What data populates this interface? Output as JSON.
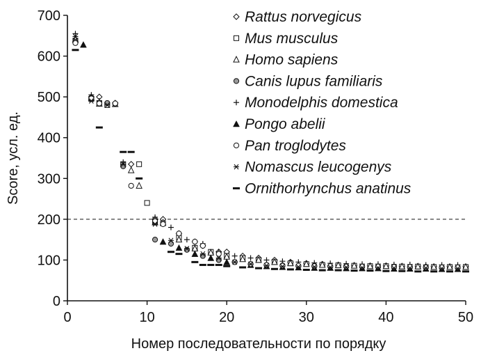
{
  "chart_data": {
    "type": "scatter",
    "xlabel": "Номер последовательности по порядку",
    "ylabel": "Score, усл. ед.",
    "xlim": [
      0,
      50
    ],
    "ylim": [
      0,
      700
    ],
    "x_ticks": [
      "0",
      "10",
      "20",
      "30",
      "40",
      "50"
    ],
    "y_ticks": [
      "0",
      "100",
      "200",
      "300",
      "400",
      "500",
      "600",
      "700"
    ],
    "grid": false,
    "legend_position": "top-right",
    "threshold_line": {
      "y": 200,
      "style": "dashed"
    },
    "series": [
      {
        "name": "Rattus norvegicus",
        "marker": "diamond-open",
        "points": [
          [
            1,
            635
          ],
          [
            3,
            500
          ],
          [
            4,
            500
          ],
          [
            6,
            485
          ],
          [
            8,
            335
          ],
          [
            11,
            200
          ],
          [
            12,
            200
          ],
          [
            14,
            165
          ],
          [
            16,
            145
          ],
          [
            17,
            135
          ],
          [
            19,
            120
          ],
          [
            20,
            120
          ],
          [
            22,
            110
          ],
          [
            24,
            105
          ],
          [
            26,
            100
          ],
          [
            28,
            95
          ],
          [
            30,
            92
          ],
          [
            32,
            90
          ],
          [
            34,
            88
          ],
          [
            36,
            87
          ],
          [
            38,
            86
          ],
          [
            40,
            86
          ],
          [
            42,
            85
          ],
          [
            44,
            85
          ],
          [
            46,
            84
          ],
          [
            48,
            84
          ],
          [
            50,
            84
          ]
        ]
      },
      {
        "name": "Mus musculus",
        "marker": "square-open",
        "points": [
          [
            1,
            638
          ],
          [
            3,
            495
          ],
          [
            4,
            485
          ],
          [
            5,
            480
          ],
          [
            7,
            335
          ],
          [
            9,
            335
          ],
          [
            10,
            240
          ],
          [
            11,
            195
          ],
          [
            12,
            190
          ],
          [
            14,
            155
          ],
          [
            16,
            130
          ],
          [
            18,
            120
          ],
          [
            20,
            110
          ],
          [
            22,
            105
          ],
          [
            24,
            100
          ],
          [
            26,
            95
          ],
          [
            28,
            92
          ],
          [
            30,
            90
          ],
          [
            32,
            88
          ],
          [
            34,
            87
          ],
          [
            36,
            86
          ],
          [
            38,
            85
          ],
          [
            40,
            85
          ],
          [
            42,
            84
          ],
          [
            44,
            84
          ],
          [
            46,
            83
          ],
          [
            48,
            83
          ],
          [
            50,
            83
          ]
        ]
      },
      {
        "name": "Homo sapiens",
        "marker": "triangle-open",
        "points": [
          [
            1,
            640
          ],
          [
            3,
            498
          ],
          [
            4,
            483
          ],
          [
            6,
            482
          ],
          [
            8,
            320
          ],
          [
            9,
            282
          ],
          [
            11,
            192
          ],
          [
            12,
            192
          ],
          [
            14,
            150
          ],
          [
            16,
            128
          ],
          [
            18,
            118
          ],
          [
            20,
            108
          ],
          [
            22,
            102
          ],
          [
            24,
            100
          ],
          [
            26,
            95
          ],
          [
            28,
            92
          ],
          [
            30,
            90
          ],
          [
            32,
            88
          ],
          [
            34,
            87
          ],
          [
            36,
            86
          ],
          [
            38,
            85
          ],
          [
            40,
            85
          ],
          [
            42,
            84
          ],
          [
            44,
            84
          ],
          [
            46,
            83
          ],
          [
            48,
            83
          ],
          [
            50,
            83
          ]
        ]
      },
      {
        "name": "Canis lupus familiaris",
        "marker": "circle-filled-gray",
        "points": [
          [
            1,
            635
          ],
          [
            3,
            495
          ],
          [
            5,
            485
          ],
          [
            6,
            483
          ],
          [
            7,
            330
          ],
          [
            11,
            150
          ],
          [
            13,
            140
          ],
          [
            15,
            125
          ],
          [
            17,
            110
          ],
          [
            19,
            100
          ],
          [
            21,
            95
          ],
          [
            23,
            90
          ],
          [
            25,
            88
          ],
          [
            27,
            87
          ],
          [
            29,
            86
          ],
          [
            31,
            86
          ],
          [
            33,
            85
          ],
          [
            35,
            85
          ],
          [
            37,
            84
          ],
          [
            39,
            84
          ],
          [
            41,
            84
          ],
          [
            43,
            83
          ],
          [
            45,
            83
          ],
          [
            47,
            82
          ],
          [
            49,
            82
          ]
        ]
      },
      {
        "name": "Monodelphis domestica",
        "marker": "plus",
        "points": [
          [
            1,
            655
          ],
          [
            3,
            505
          ],
          [
            4,
            490
          ],
          [
            7,
            340
          ],
          [
            11,
            205
          ],
          [
            13,
            180
          ],
          [
            15,
            150
          ],
          [
            17,
            140
          ],
          [
            19,
            120
          ],
          [
            21,
            110
          ],
          [
            23,
            105
          ],
          [
            25,
            100
          ],
          [
            27,
            97
          ],
          [
            29,
            95
          ],
          [
            31,
            93
          ],
          [
            33,
            92
          ],
          [
            35,
            91
          ],
          [
            37,
            90
          ],
          [
            39,
            90
          ],
          [
            41,
            89
          ],
          [
            43,
            89
          ],
          [
            45,
            88
          ],
          [
            47,
            88
          ],
          [
            49,
            88
          ]
        ]
      },
      {
        "name": "Pongo abelii",
        "marker": "triangle-filled",
        "points": [
          [
            2,
            628
          ],
          [
            12,
            145
          ],
          [
            14,
            130
          ],
          [
            16,
            115
          ],
          [
            18,
            105
          ],
          [
            20,
            95
          ],
          [
            23,
            88
          ],
          [
            25,
            85
          ],
          [
            27,
            83
          ],
          [
            29,
            82
          ],
          [
            31,
            81
          ],
          [
            33,
            81
          ],
          [
            35,
            80
          ],
          [
            37,
            80
          ],
          [
            39,
            80
          ],
          [
            41,
            79
          ],
          [
            43,
            79
          ],
          [
            45,
            79
          ],
          [
            47,
            78
          ],
          [
            49,
            78
          ]
        ]
      },
      {
        "name": "Pan troglodytes",
        "marker": "circle-open",
        "points": [
          [
            1,
            632
          ],
          [
            3,
            496
          ],
          [
            4,
            484
          ],
          [
            6,
            484
          ],
          [
            8,
            282
          ],
          [
            11,
            195
          ],
          [
            12,
            188
          ],
          [
            14,
            165
          ],
          [
            16,
            145
          ],
          [
            17,
            135
          ],
          [
            19,
            115
          ],
          [
            21,
            95
          ],
          [
            23,
            90
          ],
          [
            25,
            88
          ],
          [
            27,
            86
          ],
          [
            29,
            86
          ],
          [
            31,
            85
          ],
          [
            33,
            85
          ],
          [
            35,
            84
          ],
          [
            37,
            84
          ],
          [
            39,
            84
          ],
          [
            41,
            83
          ],
          [
            43,
            83
          ],
          [
            45,
            82
          ],
          [
            47,
            82
          ],
          [
            49,
            82
          ]
        ]
      },
      {
        "name": "Nomascus leucogenys",
        "marker": "asterisk",
        "points": [
          [
            1,
            648
          ],
          [
            3,
            490
          ],
          [
            5,
            480
          ],
          [
            7,
            335
          ],
          [
            11,
            188
          ],
          [
            13,
            148
          ],
          [
            15,
            128
          ],
          [
            17,
            115
          ],
          [
            19,
            105
          ],
          [
            21,
            95
          ],
          [
            23,
            90
          ],
          [
            25,
            86
          ],
          [
            27,
            84
          ],
          [
            29,
            83
          ],
          [
            31,
            83
          ],
          [
            33,
            82
          ],
          [
            35,
            82
          ],
          [
            37,
            81
          ],
          [
            39,
            81
          ],
          [
            41,
            80
          ],
          [
            43,
            80
          ],
          [
            45,
            80
          ],
          [
            47,
            79
          ],
          [
            49,
            79
          ]
        ]
      },
      {
        "name": "Ornithorhynchus anatinus",
        "marker": "dash",
        "points": [
          [
            1,
            615
          ],
          [
            4,
            425
          ],
          [
            7,
            365
          ],
          [
            8,
            365
          ],
          [
            9,
            300
          ],
          [
            13,
            120
          ],
          [
            14,
            115
          ],
          [
            16,
            95
          ],
          [
            17,
            88
          ],
          [
            18,
            88
          ],
          [
            19,
            88
          ],
          [
            20,
            85
          ],
          [
            22,
            82
          ],
          [
            24,
            80
          ],
          [
            26,
            78
          ],
          [
            28,
            77
          ],
          [
            30,
            76
          ],
          [
            32,
            75
          ],
          [
            34,
            75
          ],
          [
            36,
            74
          ],
          [
            38,
            74
          ],
          [
            40,
            73
          ],
          [
            42,
            73
          ],
          [
            44,
            72
          ],
          [
            46,
            72
          ],
          [
            48,
            72
          ],
          [
            50,
            72
          ]
        ]
      }
    ]
  }
}
